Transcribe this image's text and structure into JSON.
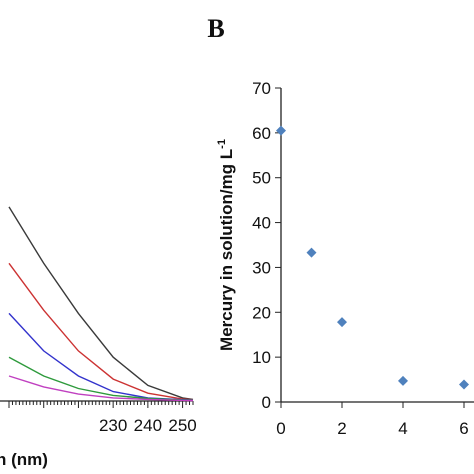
{
  "chart_data": [
    {
      "type": "line",
      "panel_label": "",
      "xlabel": "h (nm)",
      "ylabel": "",
      "xlim": [
        200,
        253
      ],
      "ylim": [
        0,
        1
      ],
      "x_ticks": [
        230,
        240,
        250
      ],
      "grid": false,
      "series": [
        {
          "color": "#3a3a3a",
          "x": [
            200,
            210,
            220,
            230,
            240,
            250,
            253
          ],
          "y": [
            0.62,
            0.44,
            0.28,
            0.14,
            0.05,
            0.01,
            0.005
          ]
        },
        {
          "color": "#cc3333",
          "x": [
            200,
            210,
            220,
            230,
            240,
            250,
            253
          ],
          "y": [
            0.44,
            0.29,
            0.16,
            0.07,
            0.025,
            0.006,
            0.004
          ]
        },
        {
          "color": "#3333cc",
          "x": [
            200,
            210,
            220,
            230,
            240,
            250,
            253
          ],
          "y": [
            0.28,
            0.16,
            0.08,
            0.03,
            0.01,
            0.004,
            0.003
          ]
        },
        {
          "color": "#2e9a3c",
          "x": [
            200,
            210,
            220,
            230,
            240,
            250,
            253
          ],
          "y": [
            0.14,
            0.08,
            0.04,
            0.018,
            0.008,
            0.003,
            0.002
          ]
        },
        {
          "color": "#c040c0",
          "x": [
            200,
            210,
            220,
            230,
            240,
            250,
            253
          ],
          "y": [
            0.08,
            0.045,
            0.022,
            0.01,
            0.005,
            0.002,
            0.001
          ]
        }
      ]
    },
    {
      "type": "scatter",
      "panel_label": "B",
      "xlabel": "",
      "ylabel": "Mercury in solution/mg L",
      "ylabel_superscript": "-1",
      "xlim": [
        0,
        6
      ],
      "ylim": [
        0,
        70
      ],
      "x_ticks": [
        0,
        2,
        4,
        6
      ],
      "y_ticks": [
        0,
        10,
        20,
        30,
        40,
        50,
        60,
        70
      ],
      "grid": false,
      "marker": "diamond",
      "marker_color": "#4f81bd",
      "x": [
        0,
        1,
        2,
        4,
        6
      ],
      "y": [
        60.5,
        33.3,
        17.8,
        4.7,
        3.9
      ]
    }
  ]
}
